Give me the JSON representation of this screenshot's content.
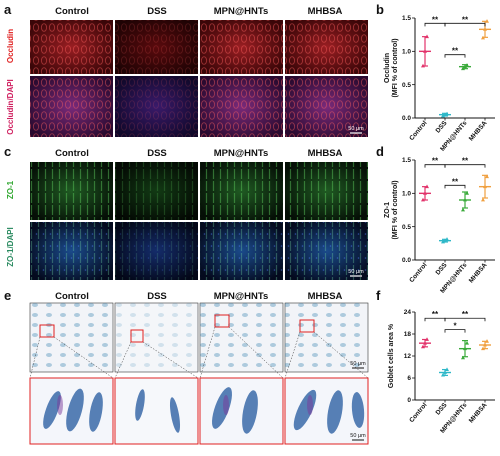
{
  "panels": {
    "a": {
      "label": "a",
      "cols": [
        "Control",
        "DSS",
        "MPN@HNTs",
        "MHBSA"
      ],
      "row_labels": [
        "Occludin",
        "Occludin/DAPI"
      ],
      "scale": "50 μm"
    },
    "c": {
      "label": "c",
      "cols": [
        "Control",
        "DSS",
        "MPN@HNTs",
        "MHBSA"
      ],
      "row_labels": [
        "ZO-1",
        "ZO-1/DAPI"
      ],
      "scale": "50 μm"
    },
    "e": {
      "label": "e",
      "cols": [
        "Control",
        "DSS",
        "MPN@HNTs",
        "MHBSA"
      ],
      "scale_top": "50 μm",
      "scale_bottom": "50 μm"
    },
    "b": {
      "label": "b"
    },
    "d": {
      "label": "d"
    },
    "f": {
      "label": "f"
    }
  },
  "colors": {
    "Control": "#e2336b",
    "DSS": "#2fb8c8",
    "MPN@HNTs": "#3aaa3a",
    "MHBSA": "#f0a040"
  },
  "chart_data": [
    {
      "id": "b",
      "type": "scatter",
      "categories": [
        "Control",
        "DSS",
        "MPN@HNTs",
        "MHBSA"
      ],
      "ylabel_line1": "Occludin",
      "ylabel_line2": "(MFI % of control)",
      "ylim": [
        0,
        1.5
      ],
      "yticks": [
        "0.0",
        "0.5",
        "1.0",
        "1.5"
      ],
      "points": [
        [
          0.78,
          1.0,
          1.22
        ],
        [
          0.03,
          0.05,
          0.06
        ],
        [
          0.74,
          0.77,
          0.79
        ],
        [
          1.2,
          1.33,
          1.45
        ]
      ],
      "means": [
        1.0,
        0.05,
        0.77,
        1.33
      ],
      "errors": [
        0.22,
        0.02,
        0.03,
        0.12
      ],
      "sig": [
        {
          "from": 0,
          "to": 1,
          "text": "**",
          "level": 1.42
        },
        {
          "from": 1,
          "to": 2,
          "text": "**",
          "level": 0.95
        },
        {
          "from": 1,
          "to": 3,
          "text": "**",
          "level": 1.42
        }
      ]
    },
    {
      "id": "d",
      "type": "scatter",
      "categories": [
        "Control",
        "DSS",
        "MPN@HNTs",
        "MHBSA"
      ],
      "ylabel_line1": "ZO-1",
      "ylabel_line2": "(MFI % of control)",
      "ylim": [
        0,
        1.5
      ],
      "yticks": [
        "0.0",
        "0.5",
        "1.0",
        "1.5"
      ],
      "points": [
        [
          0.9,
          1.0,
          1.1
        ],
        [
          0.27,
          0.29,
          0.31
        ],
        [
          0.75,
          0.9,
          1.0
        ],
        [
          0.9,
          1.1,
          1.25
        ]
      ],
      "means": [
        1.0,
        0.29,
        0.9,
        1.1
      ],
      "errors": [
        0.1,
        0.02,
        0.12,
        0.17
      ],
      "sig": [
        {
          "from": 0,
          "to": 1,
          "text": "**",
          "level": 1.43
        },
        {
          "from": 1,
          "to": 2,
          "text": "**",
          "level": 1.12
        },
        {
          "from": 1,
          "to": 3,
          "text": "**",
          "level": 1.43
        }
      ]
    },
    {
      "id": "f",
      "type": "scatter",
      "categories": [
        "Control",
        "DSS",
        "MPN@HNTs",
        "MHBSA"
      ],
      "ylabel_line1": "Goblet cells area %",
      "ylabel_line2": "",
      "ylim": [
        0,
        24
      ],
      "yticks": [
        "0",
        "6",
        "12",
        "18",
        "24"
      ],
      "points": [
        [
          14.5,
          15.5,
          16.5
        ],
        [
          6.8,
          7.5,
          8.3
        ],
        [
          11.5,
          14.0,
          15.5
        ],
        [
          14.0,
          15.0,
          16.0
        ]
      ],
      "means": [
        15.5,
        7.5,
        14.0,
        15.0
      ],
      "errors": [
        1.0,
        0.8,
        2.2,
        1.0
      ],
      "sig": [
        {
          "from": 0,
          "to": 1,
          "text": "**",
          "level": 22.3
        },
        {
          "from": 1,
          "to": 2,
          "text": "*",
          "level": 19.2
        },
        {
          "from": 1,
          "to": 3,
          "text": "**",
          "level": 22.3
        }
      ]
    }
  ]
}
